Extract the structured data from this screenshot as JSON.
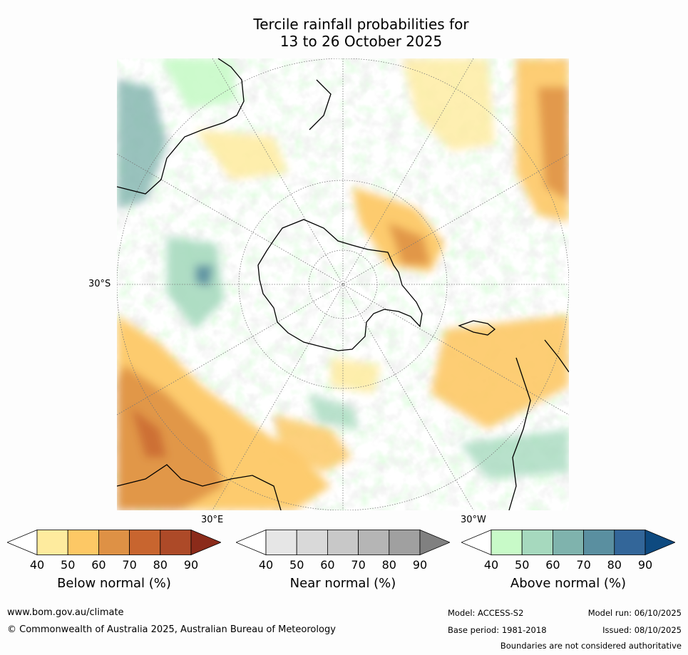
{
  "title_line1": "Tercile rainfall probabilities for",
  "title_line2": "13 to 26 October 2025",
  "map": {
    "lat_label": "30°S",
    "lon_label_east": "30°E",
    "lon_label_west": "30°W"
  },
  "colorbars": [
    {
      "label": "Below normal (%)",
      "ticks": [
        "40",
        "50",
        "60",
        "70",
        "80",
        "90"
      ],
      "colors": [
        "#ffffff",
        "#feeb9e",
        "#fdc865",
        "#de9145",
        "#c8652f",
        "#ad4a28",
        "#8b2b1a"
      ]
    },
    {
      "label": "Near normal (%)",
      "ticks": [
        "40",
        "50",
        "60",
        "70",
        "80",
        "90"
      ],
      "colors": [
        "#ffffff",
        "#e6e6e6",
        "#d9d9d9",
        "#c8c8c8",
        "#b5b5b5",
        "#a0a0a0",
        "#808080"
      ]
    },
    {
      "label": "Above normal (%)",
      "ticks": [
        "40",
        "50",
        "60",
        "70",
        "80",
        "90"
      ],
      "colors": [
        "#ffffff",
        "#c8fac8",
        "#a6d9be",
        "#7fb3ad",
        "#5a8fa0",
        "#336699",
        "#0e4a80"
      ]
    }
  ],
  "footer": {
    "url": "www.bom.gov.au/climate",
    "copyright": "© Commonwealth of Australia 2025, Australian Bureau of Meteorology",
    "model": "Model: ACCESS-S2",
    "base_period": "Base period: 1981-2018",
    "model_run": "Model run: 06/10/2025",
    "issued": "Issued: 08/10/2025",
    "disclaimer": "Boundaries are not considered authoritative"
  }
}
